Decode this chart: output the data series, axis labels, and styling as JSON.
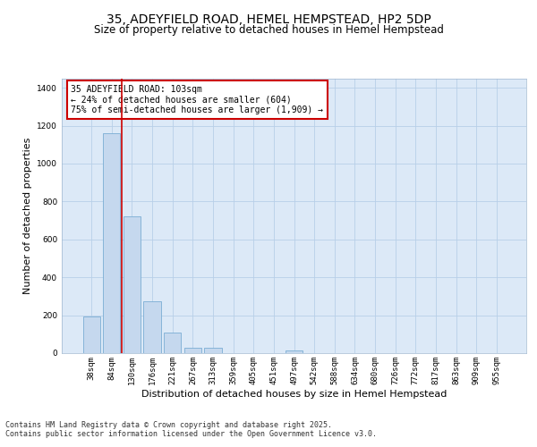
{
  "title_line1": "35, ADEYFIELD ROAD, HEMEL HEMPSTEAD, HP2 5DP",
  "title_line2": "Size of property relative to detached houses in Hemel Hempstead",
  "xlabel": "Distribution of detached houses by size in Hemel Hempstead",
  "ylabel": "Number of detached properties",
  "categories": [
    "38sqm",
    "84sqm",
    "130sqm",
    "176sqm",
    "221sqm",
    "267sqm",
    "313sqm",
    "359sqm",
    "405sqm",
    "451sqm",
    "497sqm",
    "542sqm",
    "588sqm",
    "634sqm",
    "680sqm",
    "726sqm",
    "772sqm",
    "817sqm",
    "863sqm",
    "909sqm",
    "955sqm"
  ],
  "values": [
    195,
    1160,
    720,
    275,
    107,
    30,
    27,
    0,
    0,
    0,
    15,
    0,
    0,
    0,
    0,
    0,
    0,
    0,
    0,
    0,
    0
  ],
  "bar_color": "#c5d8ee",
  "bar_edge_color": "#7aadd4",
  "background_color": "#dce9f7",
  "grid_color": "#b8cfe8",
  "vline_color": "#cc0000",
  "vline_x": 1.5,
  "annotation_box_text": "35 ADEYFIELD ROAD: 103sqm\n← 24% of detached houses are smaller (604)\n75% of semi-detached houses are larger (1,909) →",
  "ylim": [
    0,
    1450
  ],
  "yticks": [
    0,
    200,
    400,
    600,
    800,
    1000,
    1200,
    1400
  ],
  "footer_line1": "Contains HM Land Registry data © Crown copyright and database right 2025.",
  "footer_line2": "Contains public sector information licensed under the Open Government Licence v3.0.",
  "title_fontsize": 10,
  "subtitle_fontsize": 8.5,
  "ylabel_fontsize": 8,
  "xlabel_fontsize": 8,
  "tick_fontsize": 6.5,
  "annot_fontsize": 7,
  "footer_fontsize": 6
}
